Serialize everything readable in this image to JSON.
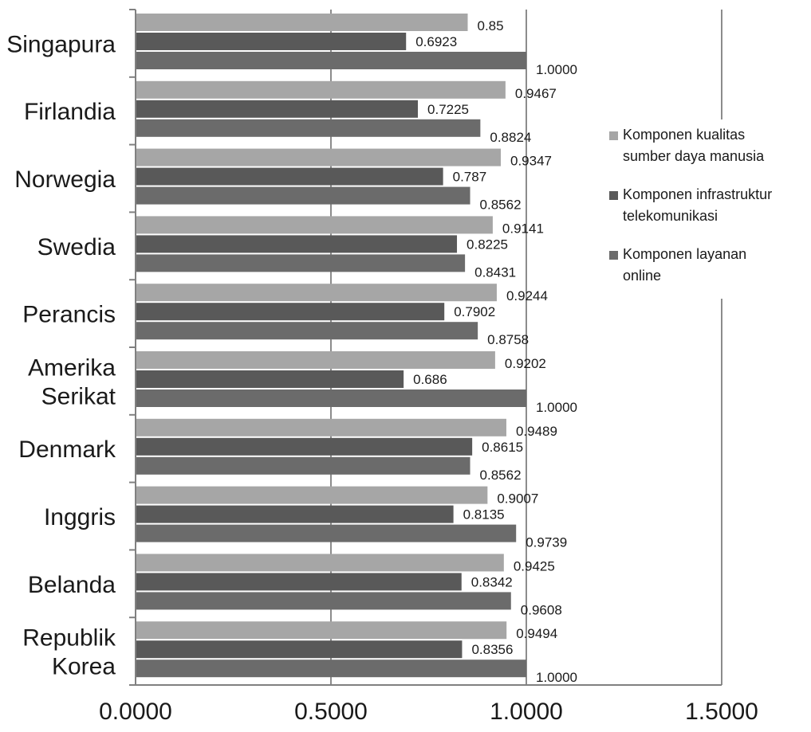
{
  "chart_data": {
    "type": "bar",
    "orientation": "horizontal",
    "categories": [
      [
        "Singapura"
      ],
      [
        "Firlandia"
      ],
      [
        "Norwegia"
      ],
      [
        "Swedia"
      ],
      [
        "Perancis"
      ],
      [
        "Amerika",
        "Serikat"
      ],
      [
        "Denmark"
      ],
      [
        "Inggris"
      ],
      [
        "Belanda"
      ],
      [
        "Republik",
        "Korea"
      ]
    ],
    "series": [
      {
        "name": "Komponen kualitas sumber daya manusia",
        "legend_lines": [
          "Komponen kualitas",
          "sumber daya manusia"
        ],
        "color": "#a6a6a6",
        "values": [
          0.85,
          0.9467,
          0.9347,
          0.9141,
          0.9244,
          0.9202,
          0.9489,
          0.9007,
          0.9425,
          0.9494
        ],
        "labels": [
          "0.85",
          "0.9467",
          "0.9347",
          "0.9141",
          "0.9244",
          "0.9202",
          "0.9489",
          "0.9007",
          "0.9425",
          "0.9494"
        ]
      },
      {
        "name": "Komponen infrastruktur telekomunikasi",
        "legend_lines": [
          "Komponen infrastruktur",
          "telekomunikasi"
        ],
        "color": "#595959",
        "values": [
          0.6923,
          0.7225,
          0.787,
          0.8225,
          0.7902,
          0.686,
          0.8615,
          0.8135,
          0.8342,
          0.8356
        ],
        "labels": [
          "0.6923",
          "0.7225",
          "0.787",
          "0.8225",
          "0.7902",
          "0.686",
          "0.8615",
          "0.8135",
          "0.8342",
          "0.8356"
        ]
      },
      {
        "name": "Komponen layanan online",
        "legend_lines": [
          "Komponen layanan",
          "online"
        ],
        "color": "#6b6b6b",
        "values": [
          1.0,
          0.8824,
          0.8562,
          0.8431,
          0.8758,
          1.0,
          0.8562,
          0.9739,
          0.9608,
          1.0
        ],
        "labels": [
          "1.0000",
          "0.8824",
          "0.8562",
          "0.8431",
          "0.8758",
          "1.0000",
          "0.8562",
          "0.9739",
          "0.9608",
          "1.0000"
        ]
      }
    ],
    "x_ticks": [
      "0.0000",
      "0.5000",
      "1.0000",
      "1.5000"
    ],
    "xlim": [
      0,
      1.5
    ],
    "title": "",
    "xlabel": "",
    "ylabel": "",
    "grid": "vertical",
    "legend_position": "right"
  }
}
